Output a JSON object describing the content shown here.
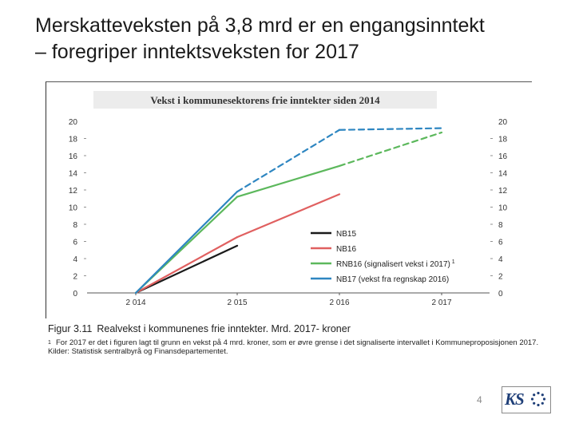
{
  "slide": {
    "title_line1": "Merskatteveksten på 3,8 mrd er en engangsinntekt",
    "title_line2": "– foregriper inntektsveksten for 2017",
    "page_number": "4",
    "logo_text": "KS"
  },
  "caption": {
    "figure_number": "Figur 3.11",
    "title": "Realvekst i kommunenes frie inntekter. Mrd. 2017- kroner",
    "footnote_marker": "1",
    "footnote": "For 2017 er det i figuren lagt til grunn en vekst på 4 mrd. kroner, som er øvre grense i det signaliserte intervallet i Kommuneproposisjonen 2017.",
    "source": "Kilder: Statistisk sentralbyrå og Finansdepartementet."
  },
  "colors": {
    "NB15": "#1a1a1a",
    "NB16": "#e06060",
    "RNB16": "#5cb85c",
    "NB17": "#2e86c1",
    "axis": "#555555",
    "title_bg": "#ececec"
  },
  "chart_data": {
    "type": "line",
    "title": "Vekst i kommunesektorens frie inntekter siden 2014",
    "categories": [
      "2 014",
      "2 015",
      "2 016",
      "2 017"
    ],
    "ylim": [
      0,
      20
    ],
    "y_ticks": [
      "0",
      "2",
      "4",
      "6",
      "8",
      "10",
      "12",
      "14",
      "16",
      "18",
      "20"
    ],
    "y_axes": "left and right",
    "legend_position": "center-right",
    "grid": false,
    "series": [
      {
        "name": "NB15",
        "key": "NB15",
        "points": [
          [
            0,
            0
          ],
          [
            1,
            5.5
          ]
        ],
        "dashed_from": null
      },
      {
        "name": "NB16",
        "key": "NB16",
        "points": [
          [
            0,
            0
          ],
          [
            1,
            6.5
          ],
          [
            2,
            11.5
          ]
        ],
        "dashed_from": null
      },
      {
        "name": "RNB16 (signalisert vekst i 2017)",
        "sup": "1",
        "key": "RNB16",
        "points": [
          [
            0,
            0
          ],
          [
            1,
            11.2
          ],
          [
            2,
            14.8
          ],
          [
            3,
            18.7
          ]
        ],
        "dashed_from": 2
      },
      {
        "name": "NB17 (vekst fra regnskap 2016)",
        "key": "NB17",
        "points": [
          [
            0,
            0
          ],
          [
            1,
            11.8
          ],
          [
            2,
            19.0
          ],
          [
            3,
            19.2
          ]
        ],
        "dashed_from": 1
      }
    ]
  }
}
